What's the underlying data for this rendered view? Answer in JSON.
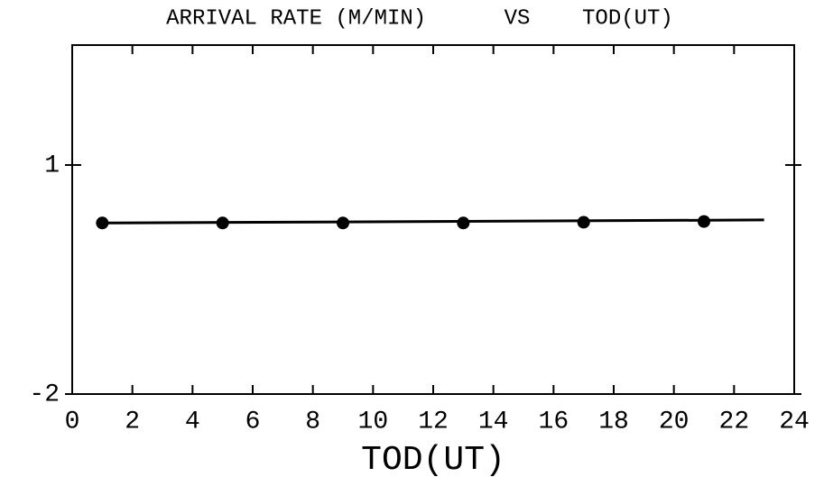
{
  "chart_data": {
    "type": "scatter",
    "title": "ARRIVAL RATE (M/MIN)      VS    TOD(UT)",
    "x_label": "TOD(UT)",
    "xlim": [
      0,
      24
    ],
    "xticks": [
      0,
      2,
      4,
      6,
      8,
      10,
      12,
      14,
      16,
      18,
      20,
      22,
      24
    ],
    "ylim": [
      -2,
      2.57
    ],
    "yticks": [
      -2,
      1
    ],
    "series": [
      {
        "name": "arrival rate",
        "color": "#000000",
        "x": [
          1,
          5,
          9,
          13,
          17,
          21
        ],
        "values": [
          0.24,
          0.24,
          0.24,
          0.24,
          0.25,
          0.26
        ]
      }
    ],
    "fit": {
      "x": [
        1,
        23
      ],
      "values": [
        0.24,
        0.28
      ],
      "color": "#000000"
    }
  }
}
